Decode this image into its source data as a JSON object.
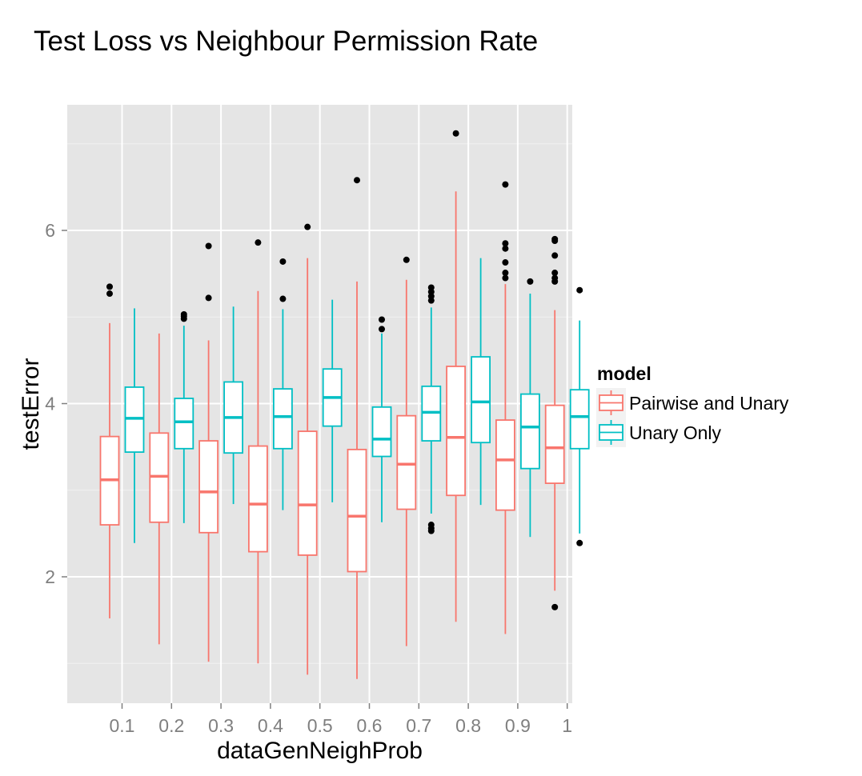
{
  "chart_data": {
    "type": "boxplot",
    "title": "Test Loss vs Neighbour Permission Rate",
    "xlabel": "dataGenNeighProb",
    "ylabel": "testError",
    "categories": [
      "0.1",
      "0.2",
      "0.3",
      "0.4",
      "0.5",
      "0.6",
      "0.7",
      "0.8",
      "0.9",
      "1"
    ],
    "y_ticks": [
      2,
      4,
      6
    ],
    "ylim": [
      0.6,
      7.5
    ],
    "grid": true,
    "legend": {
      "title": "model",
      "position": "right"
    },
    "series": [
      {
        "name": "Pairwise and Unary",
        "color": "#F8766D",
        "boxes": [
          {
            "category": "0.1",
            "whisker_low": 1.52,
            "q1": 2.6,
            "median": 3.12,
            "q3": 3.62,
            "whisker_high": 4.93,
            "outliers": [
              5.27,
              5.35
            ]
          },
          {
            "category": "0.2",
            "whisker_low": 1.22,
            "q1": 2.63,
            "median": 3.16,
            "q3": 3.66,
            "whisker_high": 4.81,
            "outliers": []
          },
          {
            "category": "0.3",
            "whisker_low": 1.02,
            "q1": 2.51,
            "median": 2.98,
            "q3": 3.57,
            "whisker_high": 4.73,
            "outliers": [
              5.22,
              5.82
            ]
          },
          {
            "category": "0.4",
            "whisker_low": 1.0,
            "q1": 2.29,
            "median": 2.84,
            "q3": 3.51,
            "whisker_high": 5.3,
            "outliers": [
              5.86
            ]
          },
          {
            "category": "0.5",
            "whisker_low": 0.87,
            "q1": 2.25,
            "median": 2.83,
            "q3": 3.68,
            "whisker_high": 5.68,
            "outliers": [
              6.04
            ]
          },
          {
            "category": "0.6",
            "whisker_low": 0.82,
            "q1": 2.06,
            "median": 2.7,
            "q3": 3.47,
            "whisker_high": 5.41,
            "outliers": [
              6.58
            ]
          },
          {
            "category": "0.7",
            "whisker_low": 1.2,
            "q1": 2.78,
            "median": 3.3,
            "q3": 3.86,
            "whisker_high": 5.43,
            "outliers": [
              5.66
            ]
          },
          {
            "category": "0.8",
            "whisker_low": 1.48,
            "q1": 2.94,
            "median": 3.61,
            "q3": 4.43,
            "whisker_high": 6.45,
            "outliers": [
              7.12
            ]
          },
          {
            "category": "0.9",
            "whisker_low": 1.34,
            "q1": 2.77,
            "median": 3.35,
            "q3": 3.81,
            "whisker_high": 5.38,
            "outliers": [
              5.45,
              5.51,
              5.63,
              5.79,
              5.85,
              6.53
            ]
          },
          {
            "category": "1",
            "whisker_low": 1.84,
            "q1": 3.08,
            "median": 3.49,
            "q3": 3.98,
            "whisker_high": 5.08,
            "outliers": [
              1.65,
              5.41,
              5.45,
              5.51,
              5.71,
              5.88,
              5.9
            ]
          }
        ]
      },
      {
        "name": "Unary Only",
        "color": "#00BFC4",
        "boxes": [
          {
            "category": "0.1",
            "whisker_low": 2.39,
            "q1": 3.44,
            "median": 3.83,
            "q3": 4.19,
            "whisker_high": 5.1,
            "outliers": []
          },
          {
            "category": "0.2",
            "whisker_low": 2.62,
            "q1": 3.48,
            "median": 3.79,
            "q3": 4.06,
            "whisker_high": 4.9,
            "outliers": [
              4.98,
              5.01,
              5.03
            ]
          },
          {
            "category": "0.3",
            "whisker_low": 2.84,
            "q1": 3.43,
            "median": 3.84,
            "q3": 4.25,
            "whisker_high": 5.12,
            "outliers": []
          },
          {
            "category": "0.4",
            "whisker_low": 2.77,
            "q1": 3.48,
            "median": 3.85,
            "q3": 4.17,
            "whisker_high": 5.09,
            "outliers": [
              5.21,
              5.64
            ]
          },
          {
            "category": "0.5",
            "whisker_low": 2.86,
            "q1": 3.74,
            "median": 4.07,
            "q3": 4.4,
            "whisker_high": 5.2,
            "outliers": []
          },
          {
            "category": "0.6",
            "whisker_low": 2.63,
            "q1": 3.39,
            "median": 3.59,
            "q3": 3.96,
            "whisker_high": 4.81,
            "outliers": [
              4.86,
              4.97
            ]
          },
          {
            "category": "0.7",
            "whisker_low": 2.73,
            "q1": 3.57,
            "median": 3.9,
            "q3": 4.2,
            "whisker_high": 5.11,
            "outliers": [
              2.53,
              2.56,
              2.6,
              5.19,
              5.24,
              5.29,
              5.34
            ]
          },
          {
            "category": "0.8",
            "whisker_low": 2.83,
            "q1": 3.55,
            "median": 4.02,
            "q3": 4.54,
            "whisker_high": 5.68,
            "outliers": []
          },
          {
            "category": "0.9",
            "whisker_low": 2.46,
            "q1": 3.25,
            "median": 3.73,
            "q3": 4.11,
            "whisker_high": 5.27,
            "outliers": [
              5.41
            ]
          },
          {
            "category": "1",
            "whisker_low": 2.5,
            "q1": 3.48,
            "median": 3.85,
            "q3": 4.16,
            "whisker_high": 4.96,
            "outliers": [
              2.39,
              5.31
            ]
          }
        ]
      }
    ]
  }
}
